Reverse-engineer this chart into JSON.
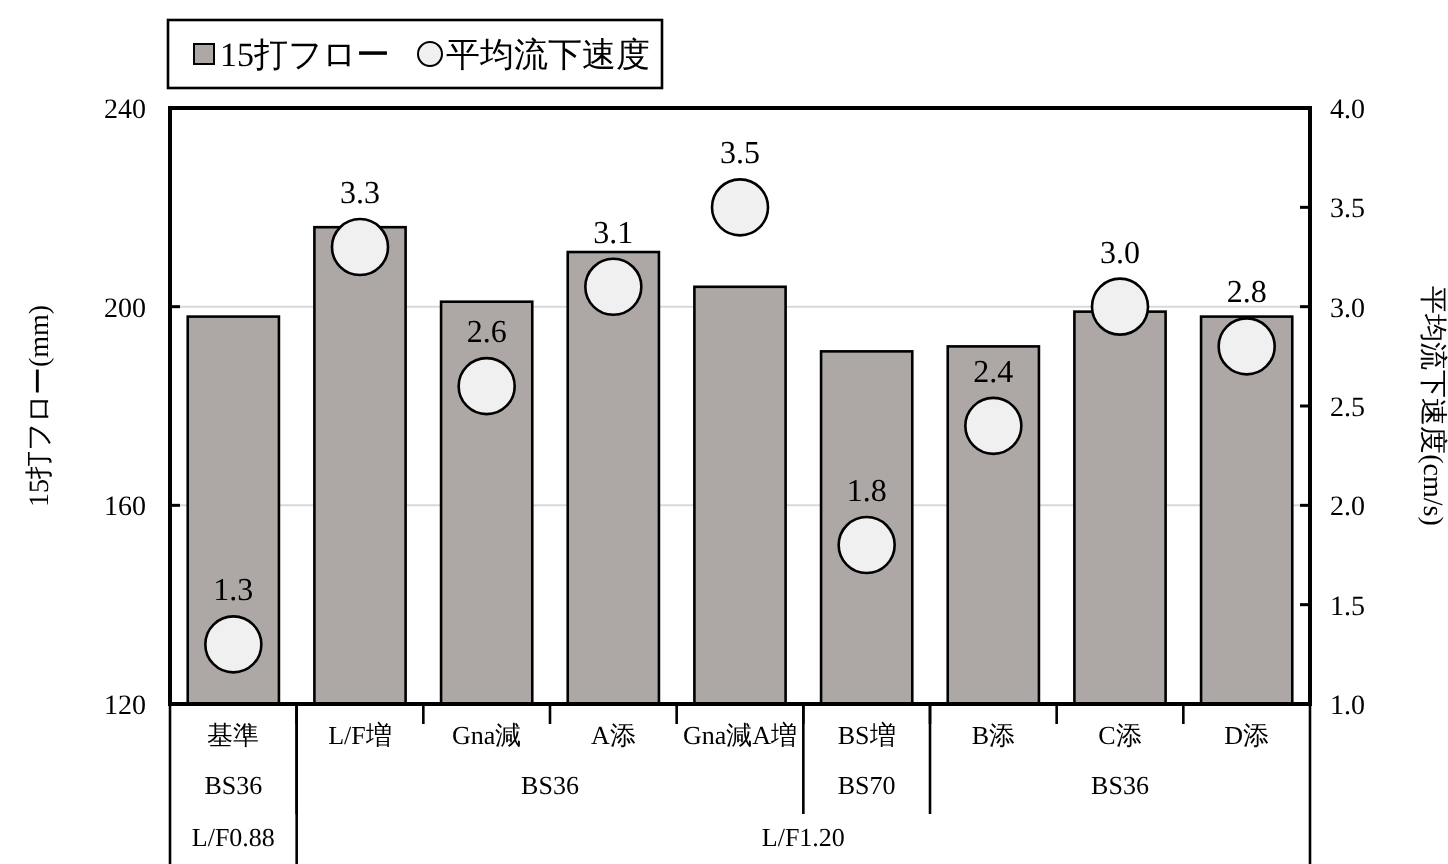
{
  "chart_data": {
    "type": "bar",
    "categories": [
      "基準",
      "L/F増",
      "Gna減",
      "A添",
      "Gna減A増",
      "BS増",
      "B添",
      "C添",
      "D添"
    ],
    "series": [
      {
        "name": "15打フロー",
        "color": "#ada8a6",
        "values": [
          198,
          216,
          201,
          211,
          204,
          191,
          192,
          199,
          198
        ]
      },
      {
        "name": "平均流下速度",
        "type": "scatter",
        "axis": "y2",
        "color": "#f0f0f0",
        "marker": "circle",
        "values": [
          1.3,
          3.3,
          2.6,
          3.1,
          3.5,
          1.8,
          2.4,
          3.0,
          2.8
        ],
        "value_labels": [
          "1.3",
          "3.3",
          "2.6",
          "3.1",
          "3.5",
          "1.8",
          "2.4",
          "3.0",
          "2.8"
        ]
      }
    ],
    "ylabel": "15打フロー(mm)",
    "y2label": "平均流下速度(cm/s)",
    "ylim": [
      120,
      240
    ],
    "yticks": [
      120,
      160,
      200,
      240
    ],
    "y2lim": [
      1.0,
      4.0
    ],
    "y2ticks": [
      {
        "value": 1.0,
        "label": "1.0"
      },
      {
        "value": 1.5,
        "label": "1.5"
      },
      {
        "value": 2.0,
        "label": "2.0"
      },
      {
        "value": 2.5,
        "label": "2.5"
      },
      {
        "value": 3.0,
        "label": "3.0"
      },
      {
        "value": 3.5,
        "label": "3.5"
      },
      {
        "value": 4.0,
        "label": "4.0"
      }
    ],
    "grid": "y",
    "legend": "top left",
    "annotations": [
      "BS36",
      "BS36",
      "BS70",
      "BS36",
      "L/F0.88",
      "L/F1.20"
    ]
  }
}
